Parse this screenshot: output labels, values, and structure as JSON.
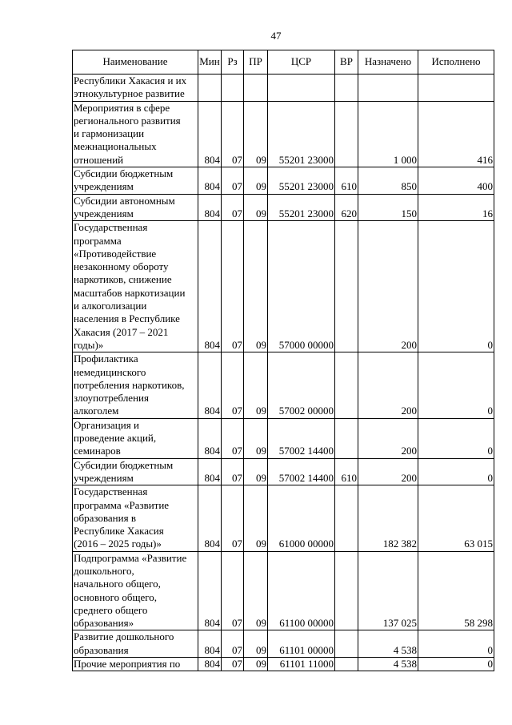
{
  "page_number": "47",
  "table": {
    "headers": [
      "Наименование",
      "Мин",
      "Рз",
      "ПР",
      "ЦСР",
      "ВР",
      "Назначено",
      "Исполнено"
    ],
    "rows": [
      {
        "name": "Республики Хакасия и их\nэтнокультурное развитие",
        "min": "",
        "rz": "",
        "pr": "",
        "csr": "",
        "vr": "",
        "assigned": "",
        "executed": ""
      },
      {
        "name": "Мероприятия в сфере\nрегионального развития\nи гармонизации\nмежнациональных\nотношений",
        "min": "804",
        "rz": "07",
        "pr": "09",
        "csr": "55201 23000",
        "vr": "",
        "assigned": "1 000",
        "executed": "416"
      },
      {
        "name": "Субсидии бюджетным\nучреждениям",
        "min": "804",
        "rz": "07",
        "pr": "09",
        "csr": "55201 23000",
        "vr": "610",
        "assigned": "850",
        "executed": "400"
      },
      {
        "name": "Субсидии автономным\nучреждениям",
        "min": "804",
        "rz": "07",
        "pr": "09",
        "csr": "55201 23000",
        "vr": "620",
        "assigned": "150",
        "executed": "16"
      },
      {
        "name": "Государственная\nпрограмма\n«Противодействие\nнезаконному обороту\nнаркотиков, снижение\nмасштабов наркотизации\nи алкоголизации\nнаселения в Республике\nХакасия (2017 – 2021\nгоды)»",
        "min": "804",
        "rz": "07",
        "pr": "09",
        "csr": "57000 00000",
        "vr": "",
        "assigned": "200",
        "executed": "0"
      },
      {
        "name": "Профилактика\nнемедицинского\nпотребления наркотиков,\nзлоупотребления\nалкоголем",
        "min": "804",
        "rz": "07",
        "pr": "09",
        "csr": "57002 00000",
        "vr": "",
        "assigned": "200",
        "executed": "0"
      },
      {
        "name": "Организация и\nпроведение акций,\nсеминаров",
        "min": "804",
        "rz": "07",
        "pr": "09",
        "csr": "57002 14400",
        "vr": "",
        "assigned": "200",
        "executed": "0"
      },
      {
        "name": "Субсидии бюджетным\nучреждениям",
        "min": "804",
        "rz": "07",
        "pr": "09",
        "csr": "57002 14400",
        "vr": "610",
        "assigned": "200",
        "executed": "0"
      },
      {
        "name": "Государственная\nпрограмма «Развитие\nобразования в\nРеспублике Хакасия\n(2016 – 2025 годы)»",
        "min": "804",
        "rz": "07",
        "pr": "09",
        "csr": "61000 00000",
        "vr": "",
        "assigned": "182 382",
        "executed": "63 015"
      },
      {
        "name": "Подпрограмма «Развитие\nдошкольного,\nначального общего,\nосновного общего,\nсреднего общего\nобразования»",
        "min": "804",
        "rz": "07",
        "pr": "09",
        "csr": "61100 00000",
        "vr": "",
        "assigned": "137 025",
        "executed": "58 298"
      },
      {
        "name": "Развитие дошкольного\nобразования",
        "min": "804",
        "rz": "07",
        "pr": "09",
        "csr": "61101 00000",
        "vr": "",
        "assigned": "4 538",
        "executed": "0"
      },
      {
        "name": "Прочие мероприятия по",
        "min": "804",
        "rz": "07",
        "pr": "09",
        "csr": "61101 11000",
        "vr": "",
        "assigned": "4 538",
        "executed": "0"
      }
    ]
  }
}
